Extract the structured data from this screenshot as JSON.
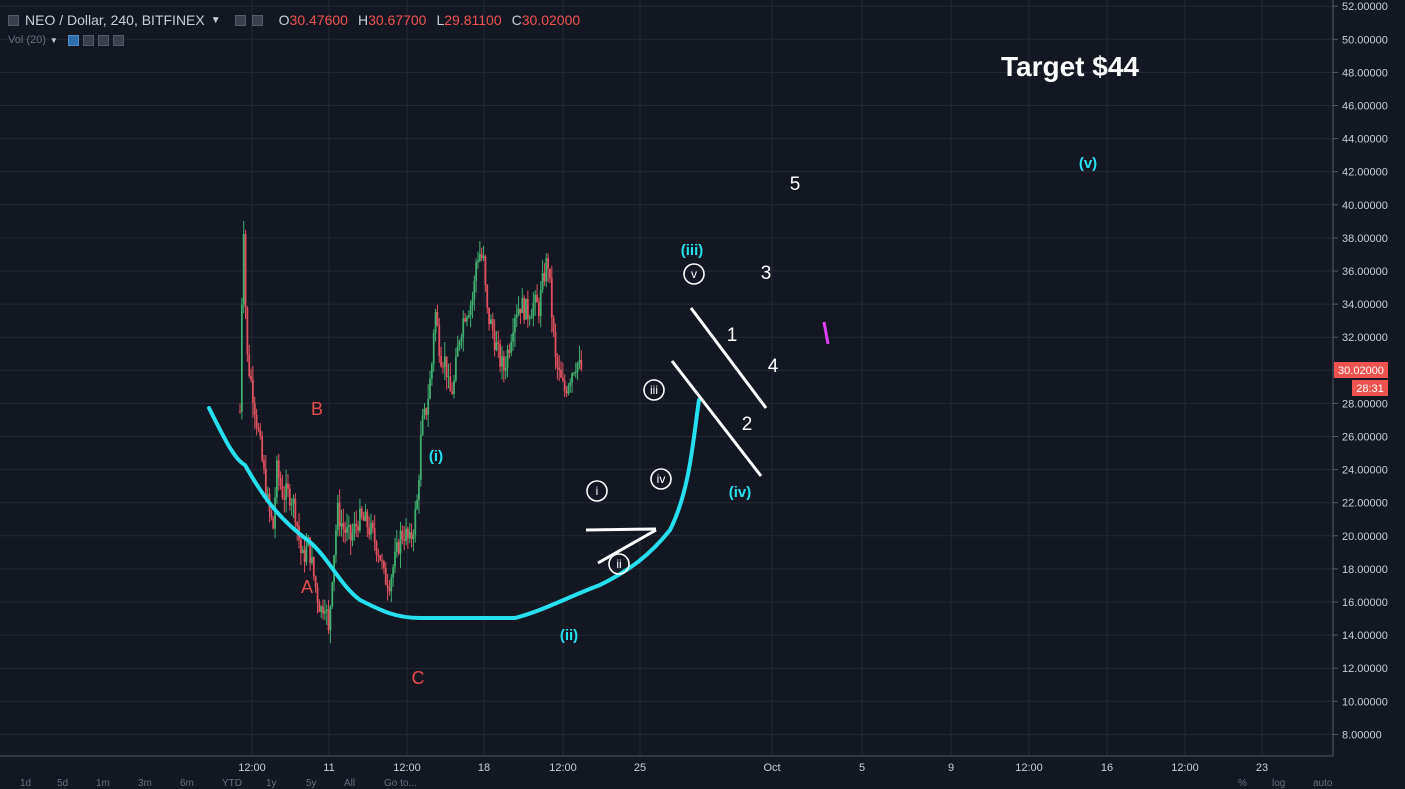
{
  "header": {
    "symbol": "NEO / Dollar, 240, BITFINEX",
    "o_label": "O",
    "o_value": "30.47600",
    "h_label": "H",
    "h_value": "30.67700",
    "l_label": "L",
    "l_value": "29.81100",
    "c_label": "C",
    "c_value": "30.02000",
    "volume_label": "Vol (20)"
  },
  "bottom_toolbar": [
    "1d",
    "5d",
    "1m",
    "3m",
    "6m",
    "YTD",
    "1y",
    "5y",
    "All",
    "Go to...",
    "%",
    "log",
    "auto"
  ],
  "colors": {
    "background": "#131722",
    "grid": "#242833",
    "up_candle": "#3fae6e",
    "down_candle": "#e0515f",
    "cyan_curve": "#26e0f0",
    "red_label": "#e84c4c",
    "white": "#ffffff",
    "price_tag": "#ef5350"
  },
  "chart_data": {
    "type": "candlestick",
    "title": "NEO / Dollar, 240, BITFINEX",
    "y_axis": {
      "ticks": [
        "52.00000",
        "50.00000",
        "48.00000",
        "46.00000",
        "44.00000",
        "42.00000",
        "40.00000",
        "38.00000",
        "36.00000",
        "34.00000",
        "32.00000",
        "30.00000",
        "28.00000",
        "26.00000",
        "24.00000",
        "22.00000",
        "20.00000",
        "18.00000",
        "16.00000",
        "14.00000",
        "12.00000",
        "10.00000",
        "8.00000"
      ],
      "range": [
        6.6,
        52.3
      ],
      "position": "right"
    },
    "x_axis": {
      "ticks": [
        "12:00",
        "11",
        "12:00",
        "18",
        "12:00",
        "25",
        "Oct",
        "5",
        "9",
        "12:00",
        "16",
        "12:00",
        "23"
      ]
    },
    "current_price": {
      "value": "30.02000",
      "countdown": "28:31"
    },
    "ohlc": {
      "open": 30.476,
      "high": 30.677,
      "low": 29.811,
      "close": 30.02
    },
    "price_path": [
      [
        0.0,
        27.5
      ],
      [
        0.3,
        39.8
      ],
      [
        0.6,
        31.0
      ],
      [
        1.2,
        28.5
      ],
      [
        2.0,
        24.5
      ],
      [
        2.6,
        21.5
      ],
      [
        3.0,
        20.5
      ],
      [
        3.3,
        24.0
      ],
      [
        3.9,
        22.5
      ],
      [
        4.6,
        22.5
      ],
      [
        5.0,
        21.5
      ],
      [
        5.6,
        18.5
      ],
      [
        6.2,
        19.5
      ],
      [
        6.8,
        17.0
      ],
      [
        7.3,
        15.5
      ],
      [
        7.7,
        16.2
      ],
      [
        8.0,
        14.0
      ],
      [
        8.3,
        17.5
      ],
      [
        8.8,
        21.5
      ],
      [
        9.3,
        20.5
      ],
      [
        10.0,
        19.8
      ],
      [
        10.7,
        21.0
      ],
      [
        11.4,
        20.8
      ],
      [
        12.0,
        20.0
      ],
      [
        12.6,
        19.0
      ],
      [
        13.0,
        17.5
      ],
      [
        13.5,
        17.3
      ],
      [
        14.0,
        18.5
      ],
      [
        14.5,
        20.0
      ],
      [
        14.9,
        20.2
      ],
      [
        15.3,
        19.5
      ],
      [
        15.6,
        20.3
      ],
      [
        16.0,
        22.0
      ],
      [
        16.4,
        26.5
      ],
      [
        16.8,
        27.5
      ],
      [
        17.3,
        30.0
      ],
      [
        17.6,
        33.8
      ],
      [
        18.1,
        31.0
      ],
      [
        18.6,
        30.5
      ],
      [
        18.9,
        28.5
      ],
      [
        19.3,
        29.0
      ],
      [
        19.8,
        32.0
      ],
      [
        20.3,
        33.5
      ],
      [
        20.8,
        34.0
      ],
      [
        21.1,
        34.5
      ],
      [
        21.3,
        36.5
      ],
      [
        21.6,
        37.2
      ],
      [
        22.0,
        36.5
      ],
      [
        22.3,
        33.5
      ],
      [
        22.8,
        32.5
      ],
      [
        23.3,
        31.0
      ],
      [
        23.8,
        30.0
      ],
      [
        24.3,
        31.5
      ],
      [
        24.8,
        33.5
      ],
      [
        25.3,
        34.0
      ],
      [
        26.0,
        33.5
      ],
      [
        26.5,
        34.0
      ],
      [
        27.0,
        33.8
      ],
      [
        27.4,
        35.5
      ],
      [
        27.8,
        36.8
      ],
      [
        28.1,
        34.0
      ],
      [
        28.5,
        30.5
      ],
      [
        28.9,
        29.5
      ],
      [
        29.3,
        28.7
      ],
      [
        29.7,
        29.5
      ],
      [
        30.1,
        30.2
      ],
      [
        30.4,
        30.6
      ],
      [
        30.7,
        30.1
      ],
      [
        31.0,
        30.0
      ]
    ],
    "annotations": [
      {
        "text": "Target $44",
        "color": "white"
      },
      {
        "text": "(v)",
        "color": "cyan",
        "price": 42.5
      },
      {
        "text": "5",
        "color": "white",
        "price": 40.5
      },
      {
        "text": "(iii)",
        "color": "cyan",
        "price": 37.3
      },
      {
        "text": "v",
        "color": "white",
        "circled": true,
        "price": 35.7
      },
      {
        "text": "3",
        "color": "white",
        "price": 36.0
      },
      {
        "text": "1",
        "color": "white",
        "price": 32.2
      },
      {
        "text": "4",
        "color": "white",
        "price": 30.2
      },
      {
        "text": "iii",
        "color": "white",
        "circled": true,
        "price": 28.6
      },
      {
        "text": "2",
        "color": "white",
        "price": 26.5
      },
      {
        "text": "B",
        "color": "red",
        "price": 27.6
      },
      {
        "text": "(i)",
        "color": "cyan",
        "price": 24.8
      },
      {
        "text": "iv",
        "color": "white",
        "circled": true,
        "price": 23.4
      },
      {
        "text": "(iv)",
        "color": "cyan",
        "price": 23.1
      },
      {
        "text": "i",
        "color": "white",
        "circled": true,
        "price": 22.5
      },
      {
        "text": "ii",
        "color": "white",
        "circled": true,
        "price": 18.0
      },
      {
        "text": "A",
        "color": "red",
        "price": 17.0
      },
      {
        "text": "(ii)",
        "color": "cyan",
        "price": 14.3
      },
      {
        "text": "C",
        "color": "red",
        "price": 11.9
      }
    ],
    "grid": true,
    "legend": "none"
  }
}
